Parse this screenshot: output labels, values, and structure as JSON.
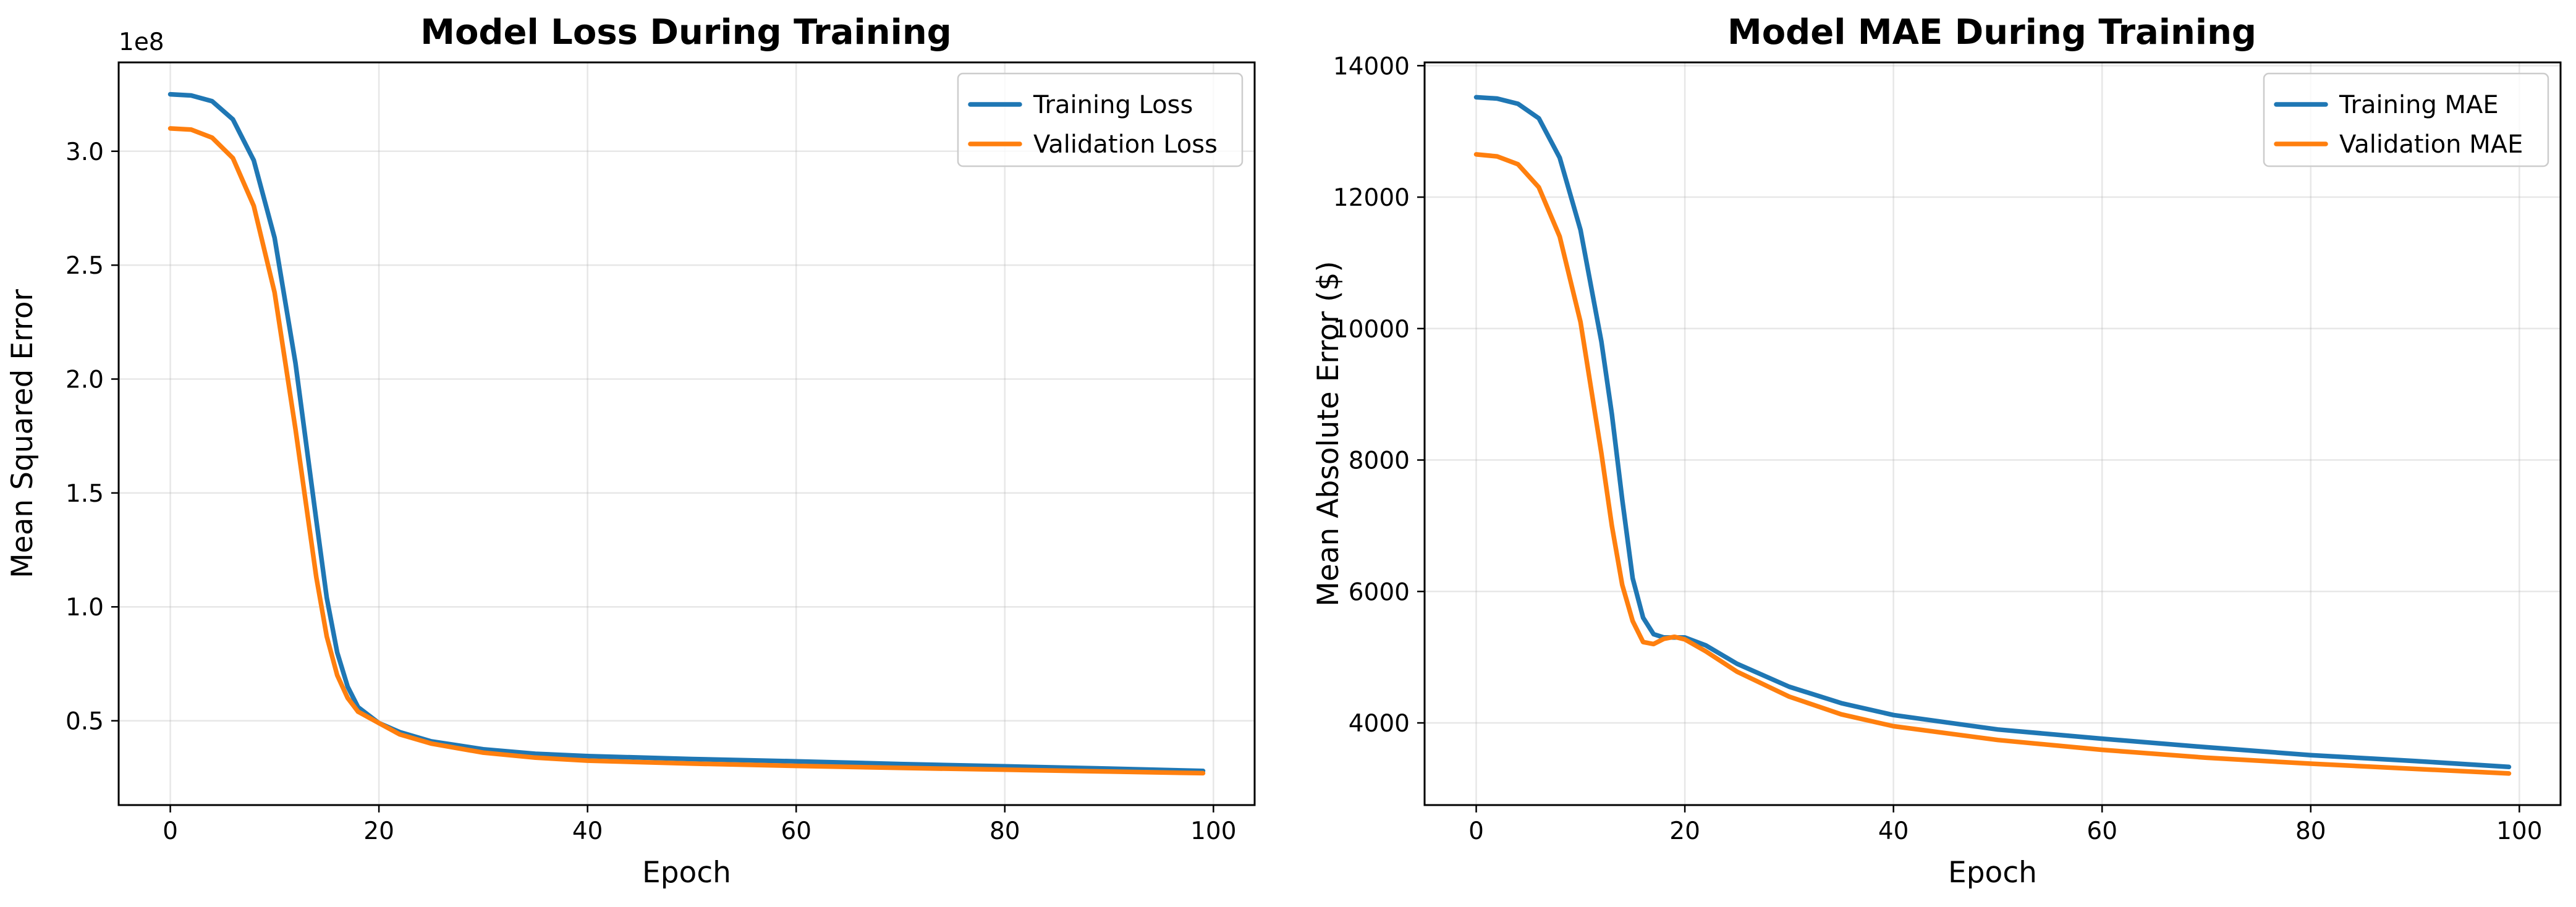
{
  "colors": {
    "training": "#1f77b4",
    "validation": "#ff7f0e"
  },
  "chart_data": [
    {
      "type": "line",
      "title": "Model Loss During Training",
      "xlabel": "Epoch",
      "ylabel": "Mean Squared Error",
      "offset_text": "1e8",
      "y_scale_factor": 100000000,
      "xlim": [
        -4.95,
        103.95
      ],
      "ylim": [
        13000000,
        339000000
      ],
      "xticks": [
        0,
        20,
        40,
        60,
        80,
        100
      ],
      "xtick_labels": [
        "0",
        "20",
        "40",
        "60",
        "80",
        "100"
      ],
      "yticks": [
        50000000,
        100000000,
        150000000,
        200000000,
        250000000,
        300000000
      ],
      "ytick_labels": [
        "0.5",
        "1.0",
        "1.5",
        "2.0",
        "2.5",
        "3.0"
      ],
      "grid": true,
      "legend_position": "upper right",
      "series": [
        {
          "name": "Training Loss",
          "color_key": "training",
          "points": [
            [
              0,
              325000000
            ],
            [
              2,
              324500000
            ],
            [
              4,
              322000000
            ],
            [
              6,
              314000000
            ],
            [
              8,
              296000000
            ],
            [
              10,
              262000000
            ],
            [
              12,
              207000000
            ],
            [
              14,
              138000000
            ],
            [
              15,
              104000000
            ],
            [
              16,
              80000000
            ],
            [
              17,
              65000000
            ],
            [
              18,
              56000000
            ],
            [
              20,
              49000000
            ],
            [
              22,
              45000000
            ],
            [
              25,
              41000000
            ],
            [
              30,
              37500000
            ],
            [
              35,
              35500000
            ],
            [
              40,
              34500000
            ],
            [
              50,
              33200000
            ],
            [
              60,
              32200000
            ],
            [
              70,
              31000000
            ],
            [
              80,
              30000000
            ],
            [
              90,
              29000000
            ],
            [
              99,
              28000000
            ]
          ]
        },
        {
          "name": "Validation Loss",
          "color_key": "validation",
          "points": [
            [
              0,
              310000000
            ],
            [
              2,
              309500000
            ],
            [
              4,
              306000000
            ],
            [
              6,
              297000000
            ],
            [
              8,
              276000000
            ],
            [
              10,
              238000000
            ],
            [
              12,
              178000000
            ],
            [
              14,
              113000000
            ],
            [
              15,
              87000000
            ],
            [
              16,
              70000000
            ],
            [
              17,
              60000000
            ],
            [
              18,
              54000000
            ],
            [
              20,
              49000000
            ],
            [
              22,
              44000000
            ],
            [
              25,
              40000000
            ],
            [
              30,
              36000000
            ],
            [
              35,
              33800000
            ],
            [
              40,
              32500000
            ],
            [
              50,
              31200000
            ],
            [
              60,
              30200000
            ],
            [
              70,
              29300000
            ],
            [
              80,
              28500000
            ],
            [
              90,
              27700000
            ],
            [
              99,
              27000000
            ]
          ]
        }
      ]
    },
    {
      "type": "line",
      "title": "Model MAE During Training",
      "xlabel": "Epoch",
      "ylabel": "Mean Absolute Error ($)",
      "offset_text": "",
      "y_scale_factor": 1,
      "xlim": [
        -4.95,
        103.95
      ],
      "ylim": [
        2750,
        14050
      ],
      "xticks": [
        0,
        20,
        40,
        60,
        80,
        100
      ],
      "xtick_labels": [
        "0",
        "20",
        "40",
        "60",
        "80",
        "100"
      ],
      "yticks": [
        4000,
        6000,
        8000,
        10000,
        12000,
        14000
      ],
      "ytick_labels": [
        "4000",
        "6000",
        "8000",
        "10000",
        "12000",
        "14000"
      ],
      "grid": true,
      "legend_position": "upper right",
      "series": [
        {
          "name": "Training MAE",
          "color_key": "training",
          "points": [
            [
              0,
              13520
            ],
            [
              2,
              13500
            ],
            [
              4,
              13420
            ],
            [
              6,
              13200
            ],
            [
              8,
              12600
            ],
            [
              10,
              11500
            ],
            [
              12,
              9800
            ],
            [
              13,
              8700
            ],
            [
              14,
              7400
            ],
            [
              15,
              6200
            ],
            [
              16,
              5600
            ],
            [
              17,
              5350
            ],
            [
              18,
              5300
            ],
            [
              20,
              5300
            ],
            [
              22,
              5180
            ],
            [
              25,
              4900
            ],
            [
              30,
              4550
            ],
            [
              35,
              4300
            ],
            [
              40,
              4120
            ],
            [
              50,
              3900
            ],
            [
              60,
              3760
            ],
            [
              70,
              3630
            ],
            [
              80,
              3510
            ],
            [
              90,
              3420
            ],
            [
              99,
              3330
            ]
          ]
        },
        {
          "name": "Validation MAE",
          "color_key": "validation",
          "points": [
            [
              0,
              12650
            ],
            [
              2,
              12620
            ],
            [
              4,
              12500
            ],
            [
              6,
              12150
            ],
            [
              8,
              11400
            ],
            [
              10,
              10100
            ],
            [
              12,
              8100
            ],
            [
              13,
              7000
            ],
            [
              14,
              6100
            ],
            [
              15,
              5550
            ],
            [
              16,
              5230
            ],
            [
              17,
              5200
            ],
            [
              18,
              5280
            ],
            [
              19,
              5310
            ],
            [
              20,
              5270
            ],
            [
              22,
              5090
            ],
            [
              25,
              4780
            ],
            [
              30,
              4400
            ],
            [
              35,
              4130
            ],
            [
              40,
              3950
            ],
            [
              50,
              3740
            ],
            [
              60,
              3590
            ],
            [
              70,
              3470
            ],
            [
              80,
              3380
            ],
            [
              90,
              3300
            ],
            [
              99,
              3230
            ]
          ]
        }
      ]
    }
  ]
}
